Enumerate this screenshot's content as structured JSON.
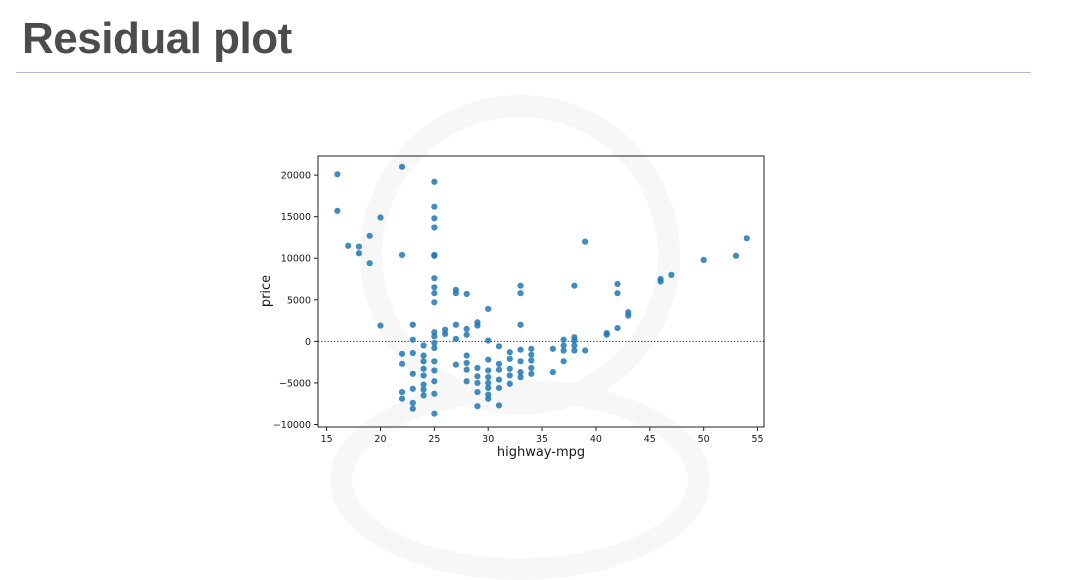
{
  "slide": {
    "title": "Residual plot"
  },
  "chart_data": {
    "type": "scatter",
    "xlabel": "highway-mpg",
    "ylabel": "price",
    "xlim": [
      14.2,
      55.6
    ],
    "ylim": [
      -10300,
      22300
    ],
    "xticks": [
      15,
      20,
      25,
      30,
      35,
      40,
      45,
      50,
      55
    ],
    "yticks": [
      -10000,
      -5000,
      0,
      5000,
      10000,
      15000,
      20000
    ],
    "ytick_labels": [
      "−10000",
      "−5000",
      "0",
      "5000",
      "10000",
      "15000",
      "20000"
    ],
    "reference_line": {
      "y": 0,
      "style": "dotted"
    },
    "point_color": "#1f77b4",
    "grid": false,
    "points": [
      [
        16,
        20100
      ],
      [
        16,
        15700
      ],
      [
        17,
        11500
      ],
      [
        18,
        11400
      ],
      [
        18,
        10600
      ],
      [
        19,
        9400
      ],
      [
        19,
        12700
      ],
      [
        20,
        14900
      ],
      [
        20,
        1900
      ],
      [
        22,
        21000
      ],
      [
        22,
        10400
      ],
      [
        22,
        -1500
      ],
      [
        22,
        -2700
      ],
      [
        22,
        -6100
      ],
      [
        22,
        -6900
      ],
      [
        23,
        2000
      ],
      [
        23,
        200
      ],
      [
        23,
        -1400
      ],
      [
        23,
        -3900
      ],
      [
        23,
        -5700
      ],
      [
        23,
        -7400
      ],
      [
        23,
        -8100
      ],
      [
        24,
        -500
      ],
      [
        24,
        -1700
      ],
      [
        24,
        -2400
      ],
      [
        24,
        -3300
      ],
      [
        24,
        -4100
      ],
      [
        24,
        -5200
      ],
      [
        24,
        -5800
      ],
      [
        24,
        -6500
      ],
      [
        25,
        19200
      ],
      [
        25,
        16200
      ],
      [
        25,
        14800
      ],
      [
        25,
        13700
      ],
      [
        25,
        10400
      ],
      [
        25,
        10300
      ],
      [
        25,
        7600
      ],
      [
        25,
        6500
      ],
      [
        25,
        5800
      ],
      [
        25,
        4700
      ],
      [
        25,
        1100
      ],
      [
        25,
        600
      ],
      [
        25,
        -200
      ],
      [
        25,
        -800
      ],
      [
        25,
        -2400
      ],
      [
        25,
        -3500
      ],
      [
        25,
        -4800
      ],
      [
        25,
        -6300
      ],
      [
        25,
        -8700
      ],
      [
        26,
        1400
      ],
      [
        26,
        900
      ],
      [
        27,
        6200
      ],
      [
        27,
        5800
      ],
      [
        27,
        2000
      ],
      [
        27,
        300
      ],
      [
        27,
        -2800
      ],
      [
        28,
        5700
      ],
      [
        28,
        1500
      ],
      [
        28,
        800
      ],
      [
        28,
        -1700
      ],
      [
        28,
        -2600
      ],
      [
        28,
        -3400
      ],
      [
        28,
        -4800
      ],
      [
        29,
        2300
      ],
      [
        29,
        1900
      ],
      [
        29,
        -3200
      ],
      [
        29,
        -4200
      ],
      [
        29,
        -5000
      ],
      [
        29,
        -6100
      ],
      [
        29,
        -7800
      ],
      [
        30,
        3900
      ],
      [
        30,
        100
      ],
      [
        30,
        -2200
      ],
      [
        30,
        -3500
      ],
      [
        30,
        -4300
      ],
      [
        30,
        -5000
      ],
      [
        30,
        -5600
      ],
      [
        30,
        -6400
      ],
      [
        30,
        -6900
      ],
      [
        31,
        -600
      ],
      [
        31,
        -2700
      ],
      [
        31,
        -3400
      ],
      [
        31,
        -4600
      ],
      [
        31,
        -5600
      ],
      [
        31,
        -7700
      ],
      [
        32,
        -1300
      ],
      [
        32,
        -2100
      ],
      [
        32,
        -3300
      ],
      [
        32,
        -4100
      ],
      [
        32,
        -5100
      ],
      [
        33,
        6700
      ],
      [
        33,
        5800
      ],
      [
        33,
        2000
      ],
      [
        33,
        -1000
      ],
      [
        33,
        -2400
      ],
      [
        33,
        -3700
      ],
      [
        33,
        -4300
      ],
      [
        34,
        -900
      ],
      [
        34,
        -1600
      ],
      [
        34,
        -2300
      ],
      [
        34,
        -3200
      ],
      [
        34,
        -3900
      ],
      [
        36,
        -900
      ],
      [
        36,
        -3700
      ],
      [
        37,
        200
      ],
      [
        37,
        -500
      ],
      [
        37,
        -1100
      ],
      [
        37,
        -2400
      ],
      [
        38,
        6700
      ],
      [
        38,
        500
      ],
      [
        38,
        100
      ],
      [
        38,
        -500
      ],
      [
        38,
        -1100
      ],
      [
        39,
        12000
      ],
      [
        39,
        -1100
      ],
      [
        41,
        800
      ],
      [
        41,
        1000
      ],
      [
        42,
        6900
      ],
      [
        42,
        5800
      ],
      [
        42,
        1600
      ],
      [
        43,
        3500
      ],
      [
        43,
        3100
      ],
      [
        46,
        7500
      ],
      [
        46,
        7200
      ],
      [
        47,
        8000
      ],
      [
        50,
        9800
      ],
      [
        53,
        10300
      ],
      [
        54,
        12400
      ]
    ]
  }
}
